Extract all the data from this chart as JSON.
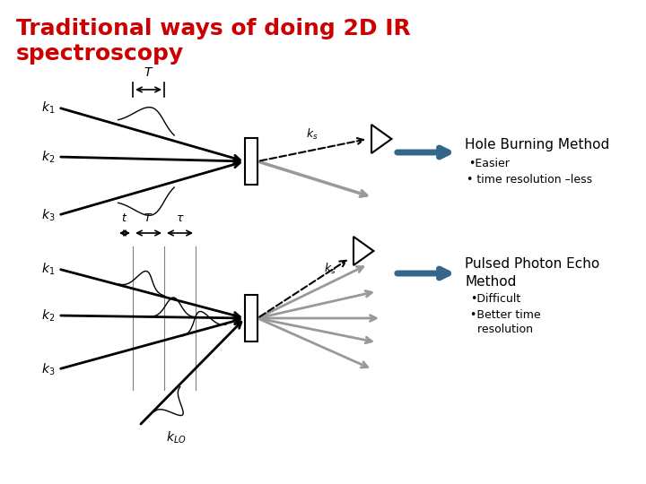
{
  "title_line1": "Traditional ways of doing 2D IR",
  "title_line2": "spectroscopy",
  "title_color": "#cc0000",
  "title_fontsize": 18,
  "bg_color": "#ffffff",
  "hole_burning_label": "Hole Burning Method",
  "hole_burning_bullet1": "•Easier",
  "hole_burning_bullet2": "• time resolution –less",
  "pulsed_photon_label": "Pulsed Photon Echo\nMethod",
  "pulsed_photon_bullet1": "•Difficult",
  "pulsed_photon_bullet2": "•Better time\n  resolution",
  "arrow_color": "#336688",
  "text_color": "#000000"
}
